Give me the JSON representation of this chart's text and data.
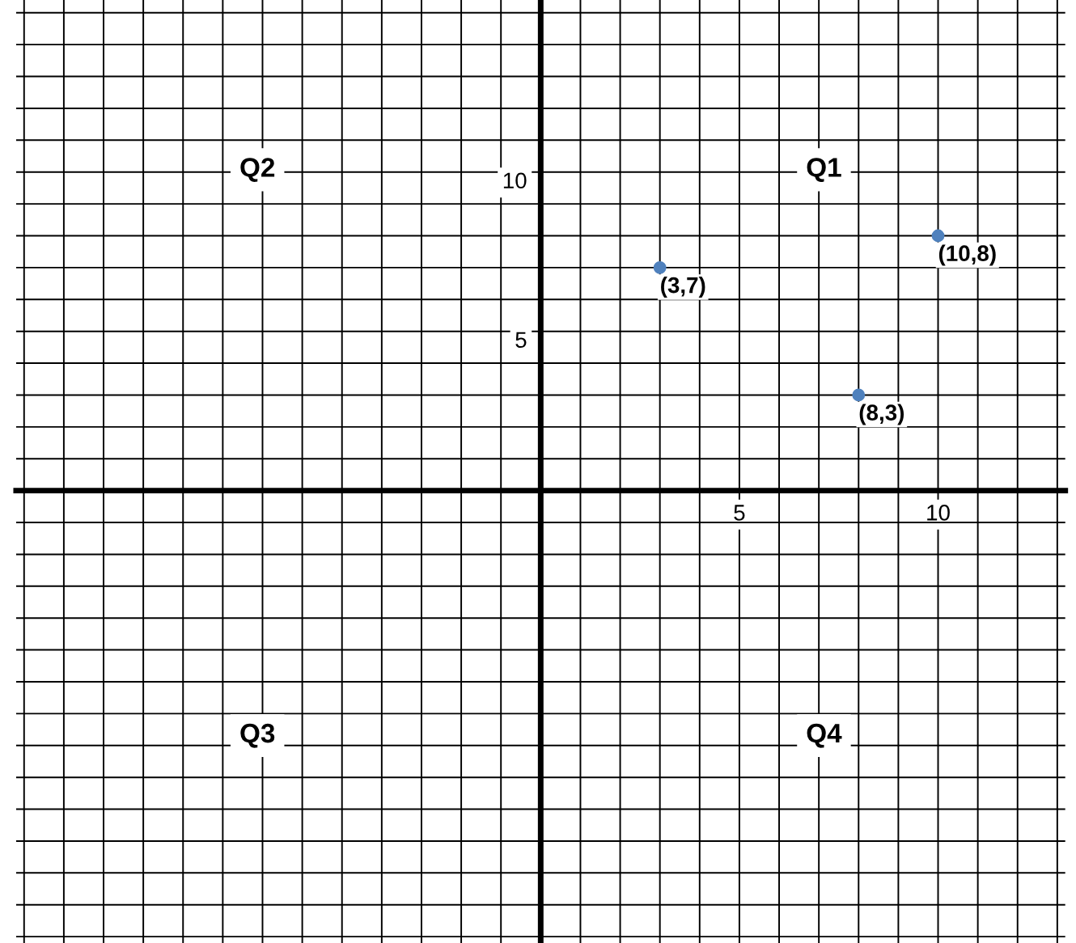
{
  "chart_data": {
    "type": "scatter",
    "series": [
      {
        "color": "#4f81bd",
        "x": [
          3,
          10,
          8
        ],
        "values": [
          7,
          8,
          3
        ]
      }
    ],
    "xlim": [
      -13.2,
      13.2
    ],
    "ylim": [
      -14.2,
      15.4
    ],
    "xticks": [
      {
        "value": -13,
        "label": null
      },
      {
        "value": -12,
        "label": null
      },
      {
        "value": -11,
        "label": null
      },
      {
        "value": -10,
        "label": null
      },
      {
        "value": -9,
        "label": null
      },
      {
        "value": -8,
        "label": null
      },
      {
        "value": -7,
        "label": null
      },
      {
        "value": -6,
        "label": null
      },
      {
        "value": -5,
        "label": null
      },
      {
        "value": -4,
        "label": null
      },
      {
        "value": -3,
        "label": null
      },
      {
        "value": -2,
        "label": null
      },
      {
        "value": -1,
        "label": null
      },
      {
        "value": 1,
        "label": null
      },
      {
        "value": 2,
        "label": null
      },
      {
        "value": 3,
        "label": null
      },
      {
        "value": 4,
        "label": null
      },
      5,
      {
        "value": 6,
        "label": null
      },
      {
        "value": 7,
        "label": null
      },
      {
        "value": 8,
        "label": null
      },
      {
        "value": 9,
        "label": null
      },
      10,
      {
        "value": 11,
        "label": null
      },
      {
        "value": 12,
        "label": null
      },
      {
        "value": 13,
        "label": null
      }
    ],
    "yticks": [
      {
        "value": -14,
        "label": null
      },
      {
        "value": -13,
        "label": null
      },
      {
        "value": -12,
        "label": null
      },
      {
        "value": -11,
        "label": null
      },
      {
        "value": -10,
        "label": null
      },
      {
        "value": -9,
        "label": null
      },
      {
        "value": -8,
        "label": null
      },
      {
        "value": -7,
        "label": null
      },
      {
        "value": -6,
        "label": null
      },
      {
        "value": -5,
        "label": null
      },
      {
        "value": -4,
        "label": null
      },
      {
        "value": -3,
        "label": null
      },
      {
        "value": -2,
        "label": null
      },
      {
        "value": -1,
        "label": null
      },
      {
        "value": 1,
        "label": null
      },
      {
        "value": 2,
        "label": null
      },
      {
        "value": 3,
        "label": null
      },
      {
        "value": 4,
        "label": null
      },
      5,
      {
        "value": 6,
        "label": null
      },
      {
        "value": 7,
        "label": null
      },
      {
        "value": 8,
        "label": null
      },
      {
        "value": 9,
        "label": null
      },
      10,
      {
        "value": 11,
        "label": null
      },
      {
        "value": 12,
        "label": null
      },
      {
        "value": 13,
        "label": null
      },
      {
        "value": 14,
        "label": null
      },
      {
        "value": 15,
        "label": null
      }
    ],
    "grid": true,
    "marker": "circle",
    "annotations": [
      "Q1",
      "Q2",
      "Q3",
      "Q4",
      {
        "text": "(3,7)",
        "x": 3,
        "y": 7
      },
      {
        "text": "(10,8)",
        "x": 10,
        "y": 8
      },
      {
        "text": "(8,3)",
        "x": 8,
        "y": 3
      }
    ]
  }
}
